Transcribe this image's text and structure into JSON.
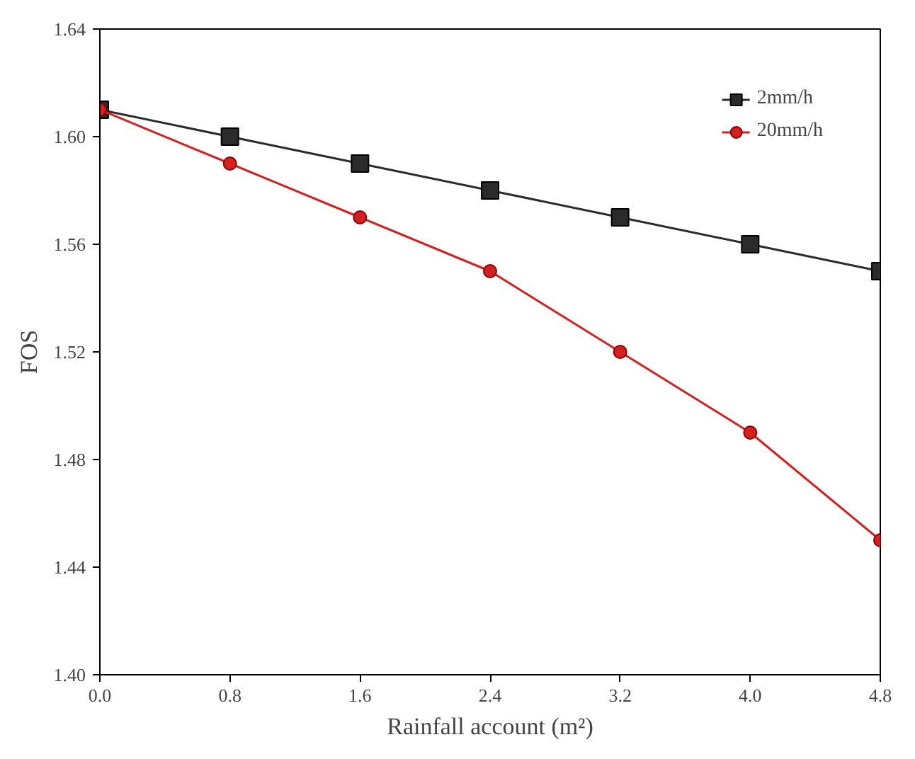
{
  "chart_data": {
    "type": "line",
    "xlabel": "Rainfall account (m²)",
    "ylabel": "FOS",
    "x": [
      0,
      0.8,
      1.6,
      2.4,
      3.2,
      4.0,
      4.8
    ],
    "xlim": [
      0,
      4.8
    ],
    "xticks": [
      {
        "value": 0,
        "label": "0.0"
      },
      0.8,
      1.6,
      2.4,
      3.2,
      {
        "value": 4.0,
        "label": "4.0"
      },
      4.8
    ],
    "ylim": [
      1.4,
      1.64
    ],
    "yticks": [
      {
        "value": 1.4,
        "label": "1.40"
      },
      {
        "value": 1.44,
        "label": "1.44"
      },
      {
        "value": 1.48,
        "label": "1.48"
      },
      {
        "value": 1.52,
        "label": "1.52"
      },
      {
        "value": 1.56,
        "label": "1.56"
      },
      {
        "value": 1.6,
        "label": "1.60"
      },
      {
        "value": 1.64,
        "label": "1.64"
      }
    ],
    "series": [
      {
        "name": "2mm/h",
        "color": "#2b2b2b",
        "marker": "square",
        "values": [
          1.61,
          1.6,
          1.59,
          1.58,
          1.57,
          1.56,
          1.55
        ]
      },
      {
        "name": "20mm/h",
        "color": "#d42020",
        "marker": "circle",
        "values": [
          1.61,
          1.59,
          1.57,
          1.55,
          1.52,
          1.49,
          1.45
        ]
      }
    ],
    "legend": "top right",
    "grid": false
  }
}
